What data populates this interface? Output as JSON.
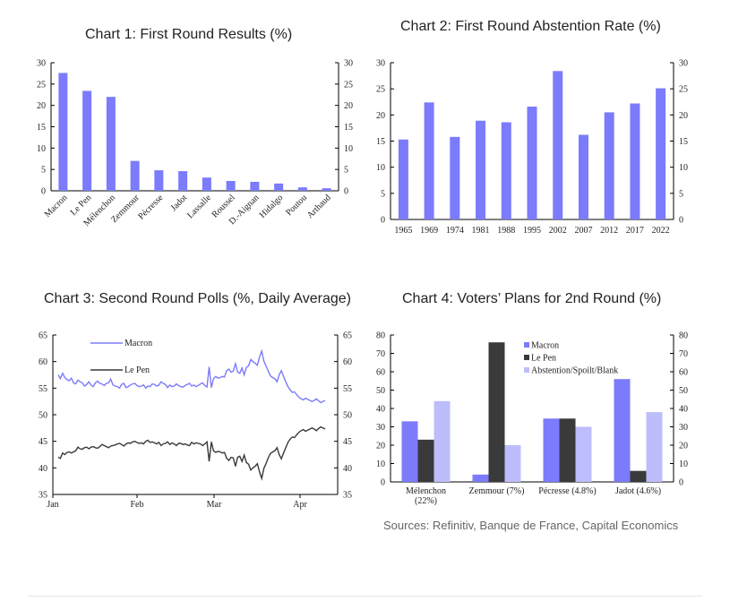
{
  "colors": {
    "primary": "#7b7bfb",
    "dark": "#3a3a3a",
    "light": "#bdbdfc"
  },
  "sources": "Sources: Refinitiv, Banque de France, Capital Economics",
  "chart_data": [
    {
      "type": "bar",
      "title": "Chart 1: First Round Results (%)",
      "categories": [
        "Macron",
        "Le Pen",
        "Mélenchon",
        "Zemmour",
        "Pécresse",
        "Jadot",
        "Lassalle",
        "Roussel",
        "D.-Aignan",
        "Hidalgo",
        "Poutou",
        "Arthaud"
      ],
      "values": [
        27.6,
        23.4,
        22.0,
        7.0,
        4.8,
        4.6,
        3.1,
        2.3,
        2.1,
        1.7,
        0.8,
        0.6
      ],
      "ylim": [
        0,
        30
      ],
      "yticks": [
        "0",
        "5",
        "10",
        "15",
        "20",
        "25",
        "30"
      ]
    },
    {
      "type": "bar",
      "title": "Chart 2: First Round Abstention Rate (%)",
      "categories": [
        "1965",
        "1969",
        "1974",
        "1981",
        "1988",
        "1995",
        "2002",
        "2007",
        "2012",
        "2017",
        "2022"
      ],
      "values": [
        15.3,
        22.4,
        15.8,
        18.9,
        18.6,
        21.6,
        28.4,
        16.2,
        20.5,
        22.2,
        25.1
      ],
      "ylim": [
        0,
        30
      ],
      "yticks": [
        "0",
        "5",
        "10",
        "15",
        "20",
        "25",
        "30"
      ]
    },
    {
      "type": "line",
      "title": "Chart 3: Second Round Polls (%, Daily Average)",
      "x_labels": [
        "Jan",
        "Feb",
        "Mar",
        "Apr"
      ],
      "ylim": [
        35,
        65
      ],
      "yticks": [
        "35",
        "40",
        "45",
        "50",
        "55",
        "60",
        "65"
      ],
      "series": [
        {
          "name": "Macron",
          "values": [
            57.5,
            56.8,
            57.8,
            57.0,
            56.6,
            56.4,
            56.9,
            56.0,
            55.8,
            56.5,
            56.2,
            56.0,
            55.4,
            55.7,
            56.2,
            55.6,
            55.3,
            56.0,
            56.3,
            55.9,
            55.8,
            55.5,
            55.9,
            56.0,
            56.7,
            55.6,
            55.4,
            55.3,
            55.0,
            55.7,
            55.9,
            55.1,
            55.3,
            55.6,
            55.8,
            55.9,
            55.5,
            55.3,
            55.4,
            55.6,
            55.0,
            55.4,
            55.3,
            55.8,
            55.7,
            55.4,
            55.6,
            56.2,
            55.9,
            55.7,
            55.1,
            55.6,
            55.3,
            55.4,
            55.8,
            55.5,
            55.3,
            55.2,
            55.5,
            55.7,
            55.9,
            55.4,
            55.6,
            55.3,
            55.5,
            55.8,
            56.0,
            55.5,
            55.2,
            59.0,
            55.1,
            56.8,
            57.2,
            56.9,
            57.0,
            57.2,
            57.1,
            58.3,
            58.6,
            58.0,
            58.2,
            59.6,
            58.0,
            57.8,
            58.8,
            57.5,
            58.9,
            59.2,
            60.4,
            60.0,
            59.7,
            59.3,
            60.8,
            62.0,
            60.1,
            59.2,
            58.2,
            57.3,
            57.0,
            56.8,
            56.2,
            57.5,
            58.3,
            57.2,
            56.2,
            55.3,
            54.7,
            54.2,
            54.3,
            53.8,
            53.3,
            53.0,
            52.8,
            53.1,
            52.9,
            52.7,
            52.5,
            52.7,
            53.0,
            52.6,
            52.3,
            52.5,
            52.7
          ]
        },
        {
          "name": "Le Pen",
          "values": [
            42.0,
            41.8,
            42.8,
            42.5,
            42.9,
            43.0,
            42.8,
            43.0,
            43.2,
            43.9,
            43.6,
            43.5,
            43.8,
            43.9,
            43.6,
            43.9,
            44.0,
            43.8,
            43.7,
            44.0,
            44.4,
            44.2,
            44.0,
            43.8,
            44.1,
            44.2,
            44.3,
            44.5,
            44.6,
            44.4,
            44.1,
            44.5,
            44.7,
            44.6,
            44.9,
            45.0,
            44.8,
            44.6,
            44.7,
            44.5,
            45.0,
            45.2,
            44.8,
            44.9,
            44.7,
            44.5,
            44.8,
            44.2,
            44.5,
            44.6,
            44.9,
            44.4,
            44.7,
            44.5,
            44.2,
            44.6,
            44.6,
            44.4,
            44.5,
            44.3,
            44.2,
            44.8,
            44.5,
            44.7,
            44.6,
            44.5,
            44.2,
            44.5,
            44.9,
            41.2,
            44.9,
            43.2,
            42.9,
            43.1,
            43.0,
            42.8,
            42.9,
            41.8,
            41.4,
            42.0,
            41.9,
            40.3,
            42.0,
            42.2,
            41.2,
            42.4,
            41.0,
            40.7,
            39.6,
            40.0,
            40.3,
            40.8,
            39.3,
            38.0,
            39.9,
            40.8,
            41.9,
            42.7,
            43.0,
            43.2,
            43.8,
            42.5,
            41.7,
            42.8,
            43.8,
            44.8,
            45.4,
            45.8,
            45.7,
            46.2,
            46.7,
            47.0,
            47.2,
            46.9,
            47.1,
            47.3,
            47.5,
            47.3,
            47.0,
            47.4,
            47.7,
            47.5,
            47.3
          ]
        }
      ]
    },
    {
      "type": "bar",
      "title": "Chart 4: Voters’ Plans for 2nd Round (%)",
      "categories": [
        "Mélenchon\n(22%)",
        "Zemmour (7%)",
        "Pécresse (4.8%)",
        "Jadot (4.6%)"
      ],
      "ylim": [
        0,
        80
      ],
      "yticks": [
        "0",
        "10",
        "20",
        "30",
        "40",
        "50",
        "60",
        "70",
        "80"
      ],
      "series": [
        {
          "name": "Macron",
          "values": [
            33,
            4,
            34.5,
            56
          ]
        },
        {
          "name": "Le Pen",
          "values": [
            23,
            76,
            34.5,
            6
          ]
        },
        {
          "name": "Abstention/Spoilt/Blank",
          "values": [
            44,
            20,
            30,
            38
          ]
        }
      ]
    }
  ]
}
